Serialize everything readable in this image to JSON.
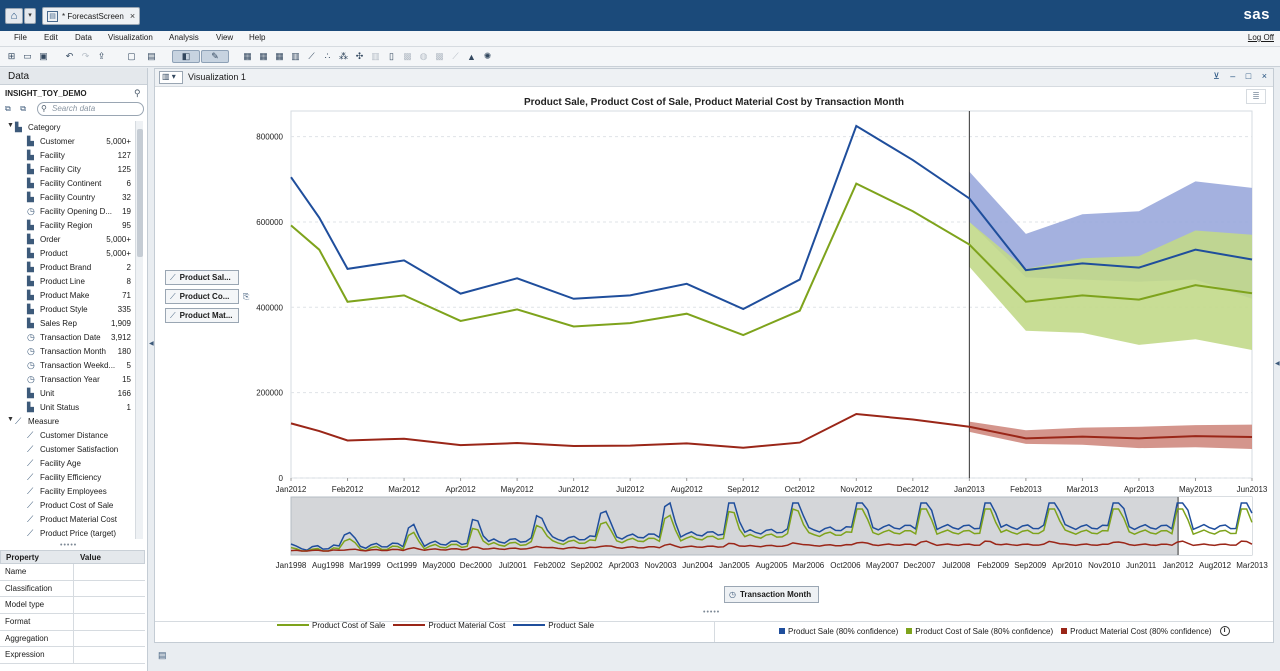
{
  "app": {
    "doc_tab_label": "* ForecastScreen",
    "brand": "sas",
    "logoff_label": "Log Off"
  },
  "menu": [
    "File",
    "Edit",
    "Data",
    "Visualization",
    "Analysis",
    "View",
    "Help"
  ],
  "left_panel": {
    "title": "Data",
    "data_source": "INSIGHT_TOY_DEMO",
    "search_placeholder": "Search data",
    "groups": [
      {
        "label": "Category",
        "icon": "category-icon",
        "items": [
          {
            "label": "Customer",
            "count": "5,000+",
            "icon": "category-icon"
          },
          {
            "label": "Facility",
            "count": "127",
            "icon": "category-icon"
          },
          {
            "label": "Facility City",
            "count": "125",
            "icon": "category-icon"
          },
          {
            "label": "Facility Continent",
            "count": "6",
            "icon": "category-icon"
          },
          {
            "label": "Facility Country",
            "count": "32",
            "icon": "category-icon"
          },
          {
            "label": "Facility Opening D...",
            "count": "19",
            "icon": "date-icon"
          },
          {
            "label": "Facility Region",
            "count": "95",
            "icon": "category-icon"
          },
          {
            "label": "Order",
            "count": "5,000+",
            "icon": "category-icon"
          },
          {
            "label": "Product",
            "count": "5,000+",
            "icon": "category-icon"
          },
          {
            "label": "Product Brand",
            "count": "2",
            "icon": "category-icon"
          },
          {
            "label": "Product Line",
            "count": "8",
            "icon": "category-icon"
          },
          {
            "label": "Product Make",
            "count": "71",
            "icon": "category-icon"
          },
          {
            "label": "Product Style",
            "count": "335",
            "icon": "category-icon"
          },
          {
            "label": "Sales Rep",
            "count": "1,909",
            "icon": "category-icon"
          },
          {
            "label": "Transaction Date",
            "count": "3,912",
            "icon": "date-icon"
          },
          {
            "label": "Transaction Month",
            "count": "180",
            "icon": "date-icon"
          },
          {
            "label": "Transaction Weekd...",
            "count": "5",
            "icon": "date-icon"
          },
          {
            "label": "Transaction Year",
            "count": "15",
            "icon": "date-icon"
          },
          {
            "label": "Unit",
            "count": "166",
            "icon": "category-icon"
          },
          {
            "label": "Unit Status",
            "count": "1",
            "icon": "category-icon"
          }
        ]
      },
      {
        "label": "Measure",
        "icon": "measure-icon",
        "items": [
          {
            "label": "Customer Distance",
            "count": "",
            "icon": "measure-icon"
          },
          {
            "label": "Customer Satisfaction",
            "count": "",
            "icon": "measure-icon"
          },
          {
            "label": "Facility Age",
            "count": "",
            "icon": "measure-icon"
          },
          {
            "label": "Facility Efficiency",
            "count": "",
            "icon": "measure-icon"
          },
          {
            "label": "Facility Employees",
            "count": "",
            "icon": "measure-icon"
          },
          {
            "label": "Product Cost of Sale",
            "count": "",
            "icon": "measure-icon"
          },
          {
            "label": "Product Material Cost",
            "count": "",
            "icon": "measure-icon"
          },
          {
            "label": "Product Price (target)",
            "count": "",
            "icon": "measure-icon"
          }
        ]
      }
    ],
    "property_table": {
      "headers": [
        "Property",
        "Value"
      ],
      "rows": [
        "Name",
        "Classification",
        "Model type",
        "Format",
        "Aggregation",
        "Expression"
      ]
    }
  },
  "visualization": {
    "tab_label": "Visualization 1",
    "roles": [
      "Product Sal...",
      "Product Co...",
      "Product Mat..."
    ],
    "time_role_button": "Transaction Month",
    "legend_lines": [
      "Product Cost of Sale",
      "Product Material Cost",
      "Product Sale"
    ],
    "legend_bands": [
      "Product Sale (80% confidence)",
      "Product Cost of Sale (80% confidence)",
      "Product Material Cost (80% confidence)"
    ]
  },
  "colors": {
    "sale": "#1f4e9c",
    "cost_of_sale": "#7ea31c",
    "material_cost": "#9a2618",
    "sale_band": "#9aa8db",
    "cost_band": "#c2d98a",
    "material_band": "#cf8a7f",
    "topbar": "#1b4a7a"
  },
  "chart_data": {
    "type": "line",
    "title": "Product Sale, Product Cost of Sale, Product Material Cost by Transaction Month",
    "x_tick_labels": [
      "Jan2012",
      "Feb2012",
      "Mar2012",
      "Apr2012",
      "May2012",
      "Jun2012",
      "Jul2012",
      "Aug2012",
      "Sep2012",
      "Oct2012",
      "Nov2012",
      "Dec2012",
      "Jan2013",
      "Feb2013",
      "Mar2013",
      "Apr2013",
      "May2013",
      "Jun2013"
    ],
    "y_tick_labels": [
      "0",
      "200000",
      "400000",
      "600000",
      "800000"
    ],
    "ylim": [
      0,
      860000
    ],
    "forecast_start": "Jan2013",
    "series": [
      {
        "name": "Product Sale",
        "color_key": "sale",
        "values": [
          705000,
          610000,
          490000,
          510000,
          432000,
          468000,
          420000,
          428000,
          455000,
          396000,
          465000,
          825000,
          745000,
          655000,
          487000,
          503000,
          493000,
          535000,
          512000
        ],
        "x_index": [
          0,
          0.5,
          1,
          2,
          3,
          4,
          5,
          6,
          7,
          8,
          9,
          10,
          11,
          12,
          13,
          14,
          15,
          16,
          17
        ]
      },
      {
        "name": "Product Cost of Sale",
        "color_key": "cost_of_sale",
        "values": [
          592000,
          535000,
          413000,
          428000,
          368000,
          395000,
          355000,
          363000,
          385000,
          335000,
          392000,
          690000,
          625000,
          547000,
          413000,
          428000,
          418000,
          452000,
          433000
        ],
        "x_index": [
          0,
          0.5,
          1,
          2,
          3,
          4,
          5,
          6,
          7,
          8,
          9,
          10,
          11,
          12,
          13,
          14,
          15,
          16,
          17
        ]
      },
      {
        "name": "Product Material Cost",
        "color_key": "material_cost",
        "values": [
          128000,
          110000,
          88000,
          92000,
          77000,
          82000,
          75000,
          76000,
          81000,
          71000,
          83000,
          150000,
          137000,
          120000,
          93000,
          97000,
          93000,
          98000,
          96000
        ],
        "x_index": [
          0,
          0.5,
          1,
          2,
          3,
          4,
          5,
          6,
          7,
          8,
          9,
          10,
          11,
          12,
          13,
          14,
          15,
          16,
          17
        ]
      }
    ],
    "confidence_bands": [
      {
        "name": "Product Sale (80% confidence)",
        "color_key": "sale_band",
        "x_index": [
          12,
          13,
          14,
          15,
          16,
          17
        ],
        "upper": [
          718000,
          572000,
          618000,
          625000,
          695000,
          680000
        ],
        "lower": [
          600000,
          470000,
          465000,
          460000,
          465000,
          420000
        ]
      },
      {
        "name": "Product Cost of Sale (80% confidence)",
        "color_key": "cost_band",
        "x_index": [
          12,
          13,
          14,
          15,
          16,
          17
        ],
        "upper": [
          600000,
          490000,
          515000,
          520000,
          580000,
          570000
        ],
        "lower": [
          495000,
          345000,
          340000,
          312000,
          325000,
          300000
        ]
      },
      {
        "name": "Product Material Cost (80% confidence)",
        "color_key": "material_band",
        "x_index": [
          12,
          13,
          14,
          15,
          16,
          17
        ],
        "upper": [
          132000,
          112000,
          118000,
          120000,
          124000,
          125000
        ],
        "lower": [
          108000,
          80000,
          78000,
          70000,
          72000,
          68000
        ]
      }
    ],
    "overview": {
      "x_tick_labels": [
        "Jan1998",
        "Aug1998",
        "Mar1999",
        "Oct1999",
        "May2000",
        "Dec2000",
        "Jul2001",
        "Feb2002",
        "Sep2002",
        "Apr2003",
        "Nov2003",
        "Jun2004",
        "Jan2005",
        "Aug2005",
        "Mar2006",
        "Oct2006",
        "May2007",
        "Dec2007",
        "Jul2008",
        "Feb2009",
        "Sep2009",
        "Apr2010",
        "Nov2010",
        "Jun2011",
        "Jan2012",
        "Aug2012",
        "Mar2013"
      ],
      "selection_start": "Jan2012",
      "selection_end": "Jun2013"
    }
  }
}
